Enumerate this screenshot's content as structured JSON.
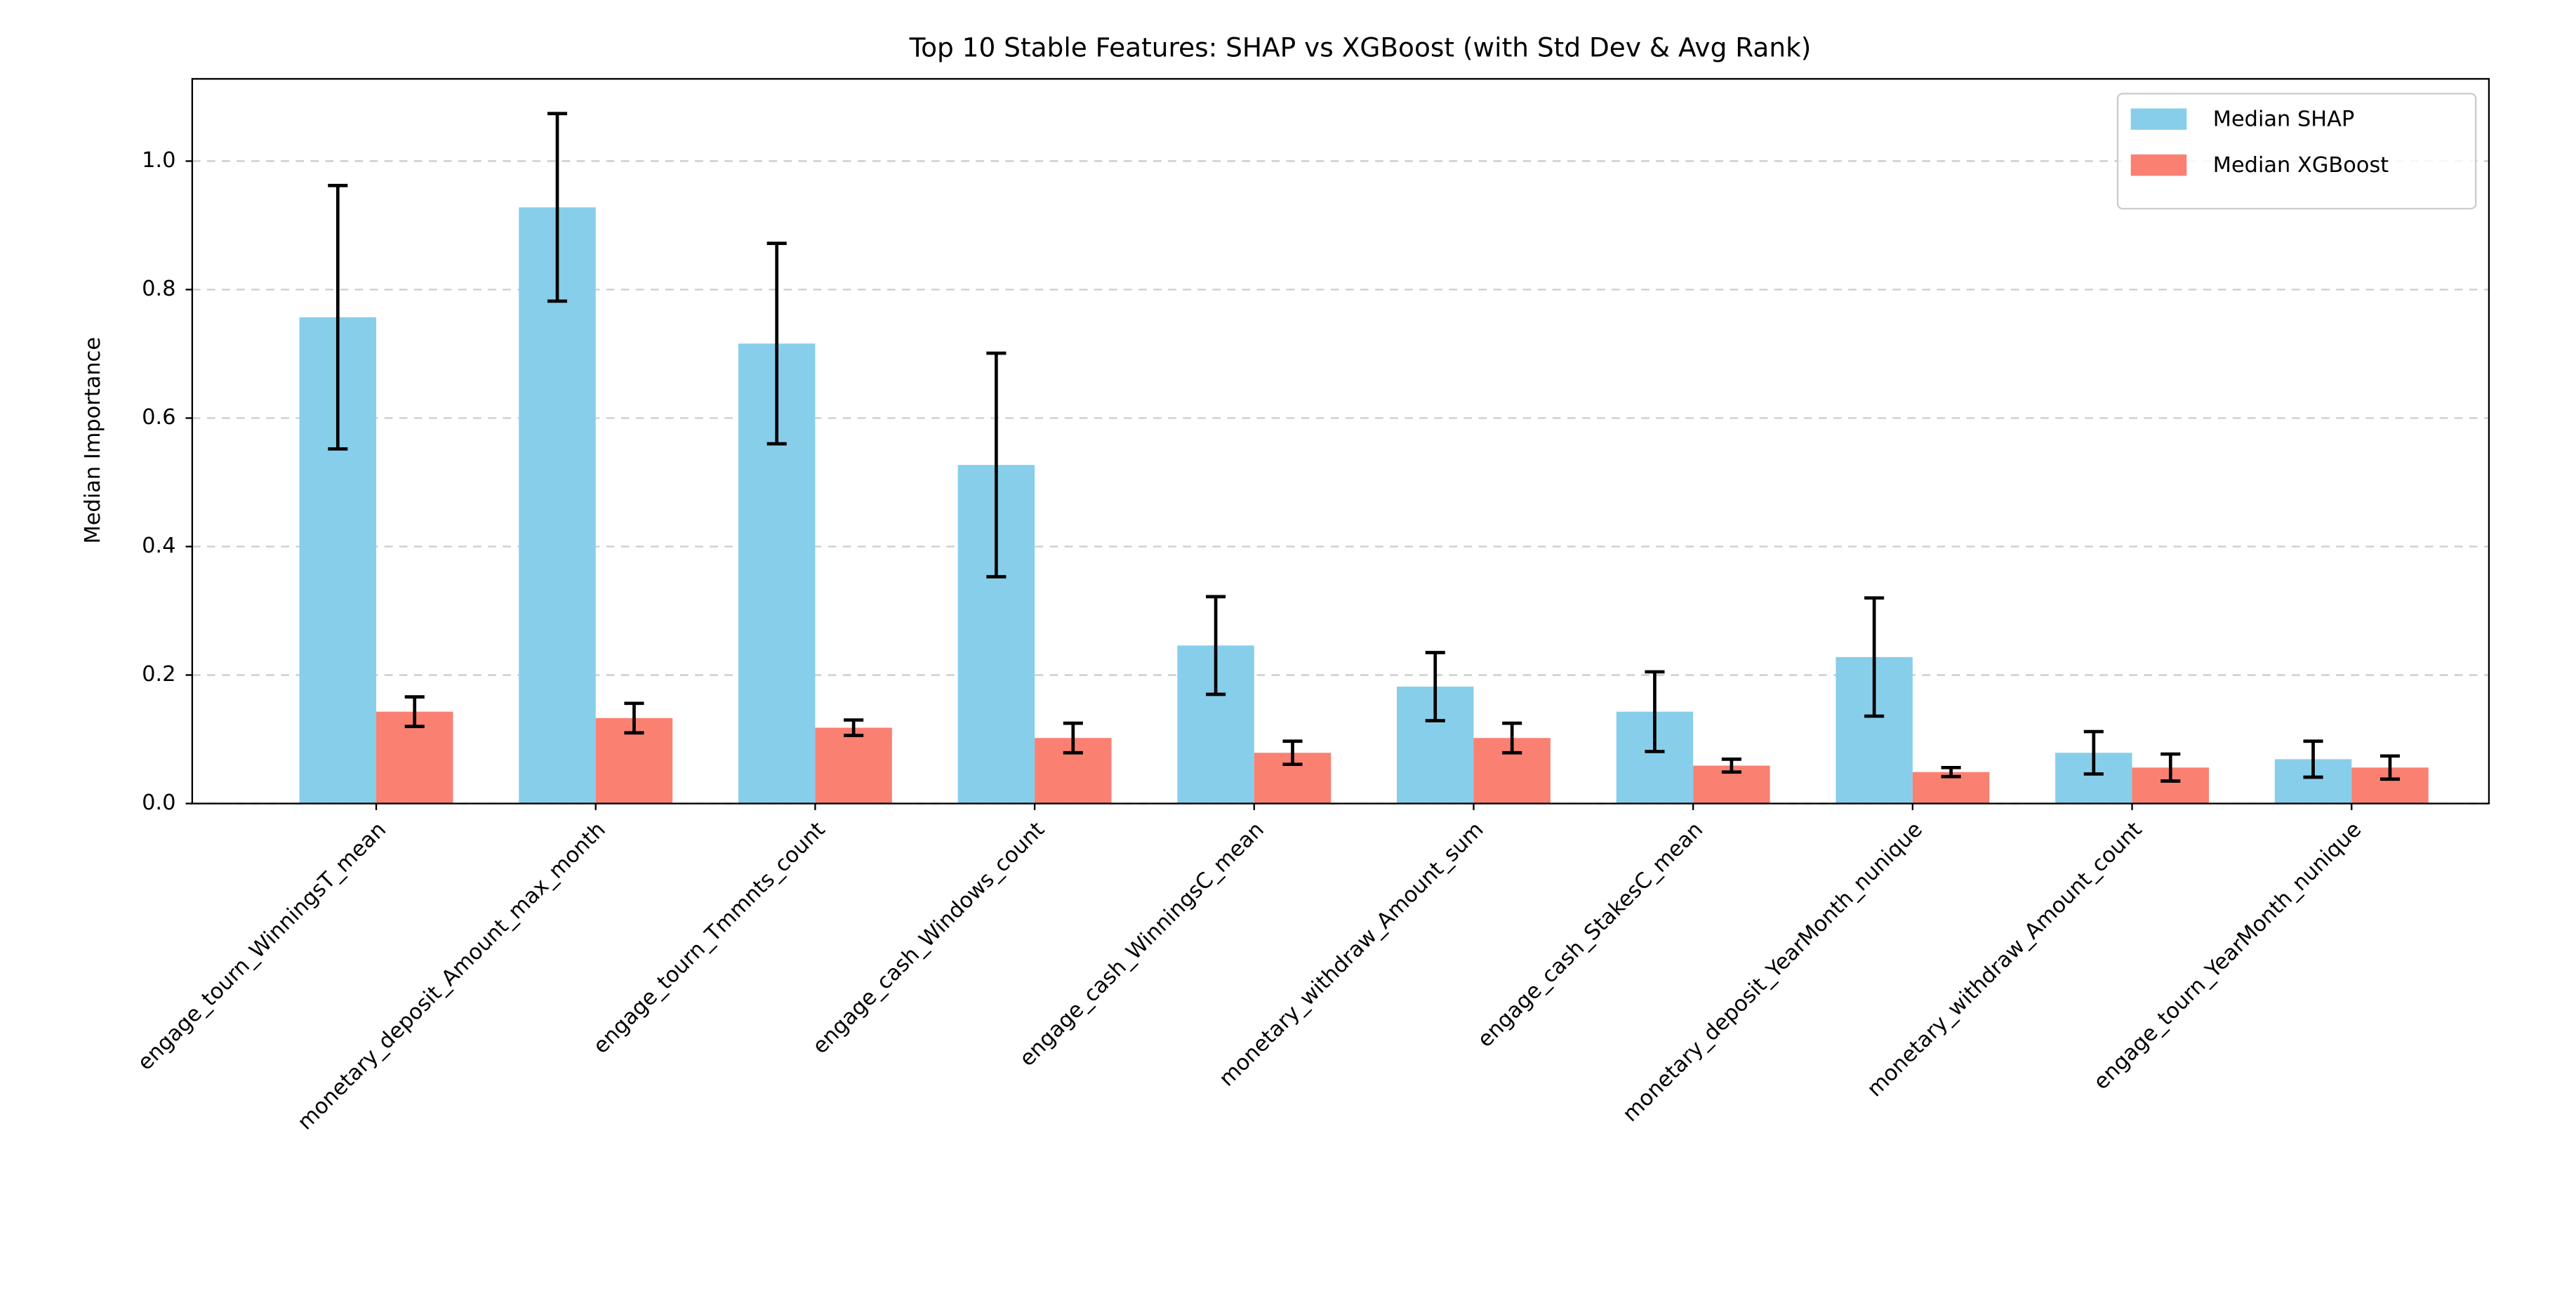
{
  "chart_data": {
    "type": "bar",
    "title": "Top 10 Stable Features: SHAP vs XGBoost (with Std Dev & Avg Rank)",
    "y_label": "Median Importance",
    "categories": [
      "engage_tourn_WinningsT_mean",
      "monetary_deposit_Amount_max_month",
      "engage_tourn_Tmmnts_count",
      "engage_cash_Windows_count",
      "engage_cash_WinningsC_mean",
      "monetary_withdraw_Amount_sum",
      "engage_cash_StakesC_mean",
      "monetary_deposit_YearMonth_nunique",
      "monetary_withdraw_Amount_count",
      "engage_tourn_YearMonth_nunique"
    ],
    "series": [
      {
        "name": "Median SHAP",
        "color": "#87ceeb",
        "values": [
          0.757,
          0.928,
          0.716,
          0.527,
          0.246,
          0.182,
          0.143,
          0.228,
          0.079,
          0.069
        ],
        "errors": [
          0.205,
          0.146,
          0.156,
          0.174,
          0.076,
          0.053,
          0.062,
          0.092,
          0.033,
          0.028
        ]
      },
      {
        "name": "Median XGBoost",
        "color": "#fa8072",
        "values": [
          0.143,
          0.133,
          0.118,
          0.102,
          0.079,
          0.102,
          0.059,
          0.049,
          0.056,
          0.056
        ],
        "errors": [
          0.023,
          0.023,
          0.012,
          0.023,
          0.018,
          0.023,
          0.01,
          0.007,
          0.021,
          0.018
        ]
      }
    ],
    "ylim": [
      0,
      1.128
    ],
    "yticks": [
      {
        "value": 0,
        "label": "0.0"
      },
      0.2,
      0.4,
      0.6,
      0.8,
      {
        "value": 1,
        "label": "1.0"
      }
    ],
    "grid": true,
    "legend": "upper right"
  }
}
